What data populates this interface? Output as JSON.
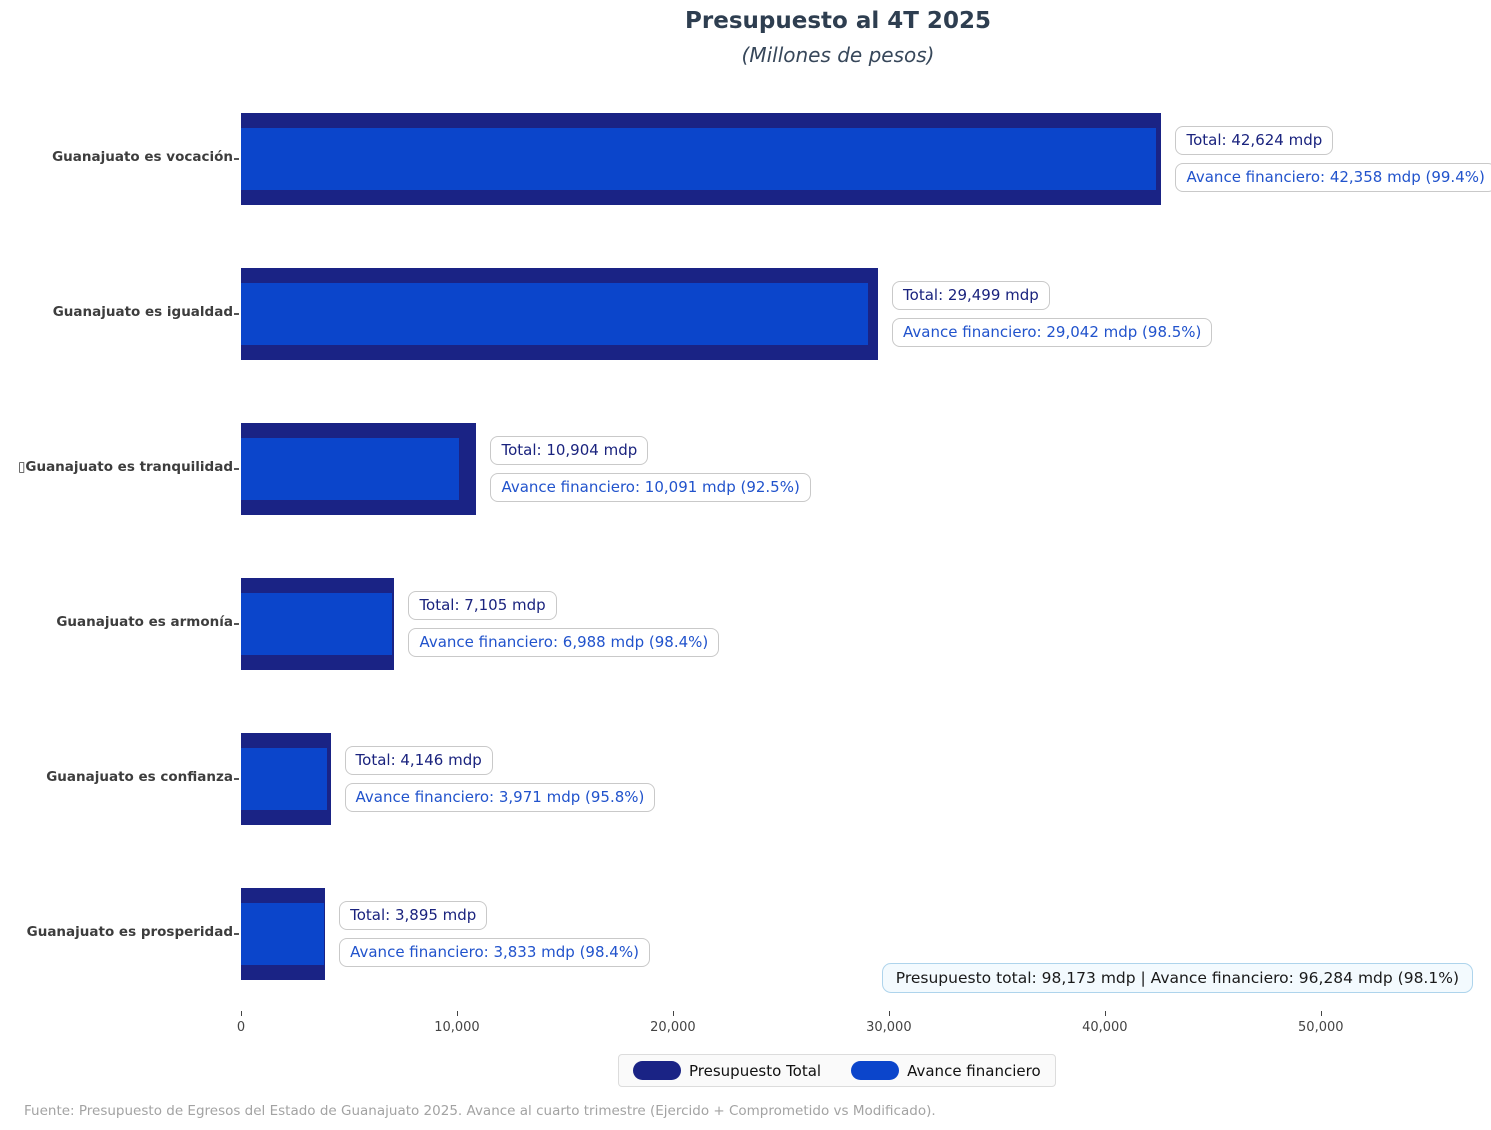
{
  "chart_data": {
    "type": "bar",
    "orientation": "horizontal",
    "title": "Presupuesto al 4T 2025",
    "subtitle": "(Millones de pesos)",
    "categories": [
      "Guanajuato es vocación",
      "Guanajuato es igualdad",
      "▯Guanajuato es tranquilidad",
      "Guanajuato es armonía",
      "Guanajuato es confianza",
      "Guanajuato es prosperidad"
    ],
    "series": [
      {
        "name": "Presupuesto Total",
        "color": "#1a2385",
        "values": [
          42624,
          29499,
          10904,
          7105,
          4146,
          3895
        ]
      },
      {
        "name": "Avance financiero",
        "color": "#0b45cb",
        "values": [
          42358,
          29042,
          10091,
          6988,
          3971,
          3833
        ]
      }
    ],
    "percent_complete": [
      "99.4%",
      "98.5%",
      "92.5%",
      "98.4%",
      "95.8%",
      "98.4%"
    ],
    "bar_annotations": [
      {
        "total": "Total: 42,624 mdp",
        "avance": "Avance financiero: 42,358 mdp (99.4%)"
      },
      {
        "total": "Total: 29,499 mdp",
        "avance": "Avance financiero: 29,042 mdp (98.5%)"
      },
      {
        "total": "Total: 10,904 mdp",
        "avance": "Avance financiero: 10,091 mdp (92.5%)"
      },
      {
        "total": "Total: 7,105 mdp",
        "avance": "Avance financiero: 6,988 mdp (98.4%)"
      },
      {
        "total": "Total: 4,146 mdp",
        "avance": "Avance financiero: 3,971 mdp (95.8%)"
      },
      {
        "total": "Total: 3,895 mdp",
        "avance": "Avance financiero: 3,833 mdp (98.4%)"
      }
    ],
    "xlim": [
      0,
      56400
    ],
    "xticks": [
      {
        "value": 0,
        "label": "0"
      },
      {
        "value": 10000,
        "label": "10,000"
      },
      {
        "value": 20000,
        "label": "20,000"
      },
      {
        "value": 30000,
        "label": "30,000"
      },
      {
        "value": 40000,
        "label": "40,000"
      },
      {
        "value": 50000,
        "label": "50,000"
      }
    ],
    "grid": false,
    "legend_position": "bottom-center"
  },
  "summary_annotation": "Presupuesto total: 98,173 mdp | Avance financiero: 96,284 mdp (98.1%)",
  "source_note": "Fuente: Presupuesto de Egresos del Estado de Guanajuato 2025. Avance al cuarto trimestre (Ejercido + Comprometido vs Modificado).",
  "colors": {
    "total_bar": "#1a2385",
    "avance_bar": "#0b45cb",
    "total_annotation_text": "#1a237e",
    "avance_annotation_text": "#2153cc",
    "summary_border": "#aed4ec",
    "summary_background": "#f3fafe",
    "title_text": "#2e3e50"
  }
}
